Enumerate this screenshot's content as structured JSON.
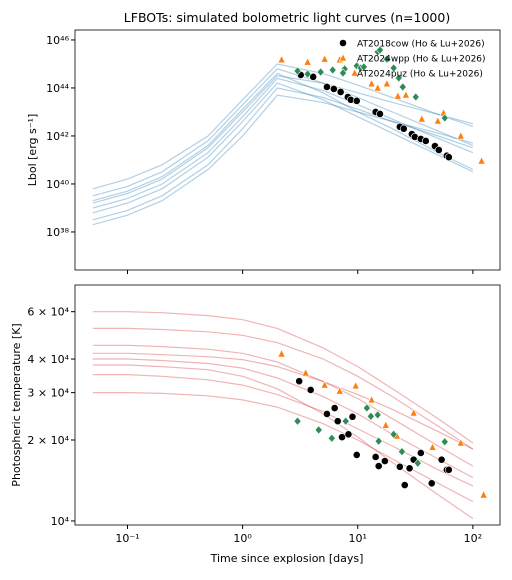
{
  "chart_data": [
    {
      "type": "line",
      "title": "LFBOTs: simulated bolometric light curves (n=1000)",
      "ylabel": "Lbol [erg s⁻¹]",
      "xscale": "log",
      "yscale": "log",
      "xlim": [
        0.035,
        172
      ],
      "ylim": [
        2.6e+36,
        2.6e+46
      ],
      "yticks": [
        {
          "value": 1e+38,
          "label": "10³⁸"
        },
        {
          "value": 1e+40,
          "label": "10⁴⁰"
        },
        {
          "value": 1e+42,
          "label": "10⁴²"
        },
        {
          "value": 1e+44,
          "label": "10⁴⁴"
        },
        {
          "value": 1e+46,
          "label": "10⁴⁶"
        }
      ],
      "legend": "upper right",
      "model_color": "#1f77b4",
      "model_opacity": 0.35,
      "model_x": [
        0.05,
        0.1,
        0.2,
        0.5,
        1,
        2,
        5,
        10,
        20,
        50,
        100
      ],
      "models": [
        {
          "values": [
            1e+39,
            2.5e+39,
            1e+40,
            2e+41,
            6.3e+42,
            2.5e+44,
            7.9e+43,
            2e+43,
            5e+42,
            7.9e+41,
            2e+41
          ]
        },
        {
          "values": [
            3.2e+38,
            7.9e+38,
            3.2e+39,
            6.3e+40,
            2e+42,
            1e+44,
            4e+43,
            1.3e+43,
            4e+42,
            1e+42,
            3.2e+41
          ]
        },
        {
          "values": [
            3.2e+39,
            7.9e+39,
            3.2e+40,
            6.3e+41,
            2e+43,
            6.3e+44,
            1.6e+44,
            4e+43,
            1e+43,
            1.6e+42,
            4e+41
          ]
        },
        {
          "values": [
            6.3e+39,
            1.6e+40,
            6.3e+40,
            1e+42,
            3.2e+43,
            1e+45,
            4e+44,
            1.3e+44,
            4e+43,
            7.9e+42,
            2.5e+42
          ]
        },
        {
          "values": [
            6.3e+38,
            1.6e+39,
            6.3e+39,
            1.3e+41,
            4e+42,
            1.6e+44,
            3.2e+43,
            6.3e+42,
            1.3e+42,
            1.6e+41,
            3.2e+40
          ]
        },
        {
          "values": [
            1.6e+39,
            4e+39,
            1.6e+40,
            3.2e+41,
            1e+43,
            3.2e+44,
            1.6e+44,
            6.3e+43,
            2.5e+43,
            7.9e+42,
            3.2e+42
          ]
        },
        {
          "values": [
            2e+38,
            5e+38,
            2e+39,
            4e+40,
            1e+42,
            5e+43,
            2.5e+43,
            1e+43,
            4e+42,
            1.3e+42,
            5e+41
          ]
        },
        {
          "values": [
            2e+39,
            5e+39,
            2e+40,
            4e+41,
            1.3e+43,
            4e+44,
            6.3e+43,
            1e+43,
            2e+42,
            2e+41,
            4e+40
          ]
        }
      ],
      "observations": [
        {
          "name": "AT2018cow (Ho & Lu+2026)",
          "marker": "circle",
          "color": "#000000",
          "x": [
            3.2,
            4.1,
            5.4,
            6.2,
            7.1,
            8.2,
            8.7,
            9.8,
            14.3,
            15.6,
            23.2,
            25.1,
            29.5,
            31.3,
            35.3,
            39,
            46.8,
            50.6,
            59.4,
            61.8
          ],
          "values": [
            3.5e+44,
            2.9e+44,
            1.1e+44,
            9.1e+43,
            6.8e+43,
            4.2e+43,
            3.2e+43,
            2.9e+43,
            1e+43,
            8.3e+42,
            2.4e+42,
            2e+42,
            1.2e+42,
            9.1e+41,
            7.5e+41,
            6.2e+41,
            3.8e+41,
            2.6e+41,
            1.5e+41,
            1.3e+41
          ]
        },
        {
          "name": "AT2024wpp (Ho & Lu+2026)",
          "marker": "triangle",
          "color": "#ff7f0e",
          "x": [
            2.18,
            3.67,
            5.16,
            6.97,
            9.4,
            13.2,
            14.9,
            17.9,
            22.3,
            26.2,
            36,
            49.6,
            55.7,
            78.5,
            119
          ],
          "values": [
            1.5e+45,
            1.2e+45,
            1.6e+45,
            1.5e+45,
            4.2e+44,
            1.5e+44,
            1e+44,
            1.5e+44,
            4.6e+43,
            5.1e+43,
            5.1e+42,
            4.2e+42,
            9.1e+42,
            1e+42,
            9.1e+40
          ]
        },
        {
          "name": "AT2024puz (Ho & Lu+2026)",
          "marker": "diamond",
          "color": "#2e8b57",
          "x": [
            3.0,
            3.67,
            4.76,
            6.06,
            7.7,
            9.8,
            10.6,
            11.3,
            14.9,
            15.6,
            17.9,
            20.5,
            22.7,
            24.6,
            31.9,
            57
          ],
          "values": [
            5.1e+44,
            3.8e+44,
            4.6e+44,
            5.6e+44,
            6.2e+44,
            8.3e+44,
            6.8e+44,
            7.5e+44,
            3.2e+45,
            3.8e+45,
            1.6e+45,
            6.8e+44,
            2.6e+44,
            1.1e+44,
            4.2e+43,
            5.6e+42
          ]
        }
      ]
    },
    {
      "type": "line",
      "xlabel": "Time since explosion [days]",
      "ylabel": "Photospheric temperature [K]",
      "xscale": "log",
      "yscale": "log",
      "xlim": [
        0.035,
        172
      ],
      "ylim": [
        9660,
        75400
      ],
      "xticks": [
        {
          "value": 0.1,
          "label": "10⁻¹"
        },
        {
          "value": 1,
          "label": "10⁰"
        },
        {
          "value": 10,
          "label": "10¹"
        },
        {
          "value": 100,
          "label": "10²"
        }
      ],
      "yticks": [
        {
          "value": 10000,
          "label": "10⁴"
        },
        {
          "value": 20000,
          "label": "2 × 10⁴"
        },
        {
          "value": 30000,
          "label": "3 × 10⁴"
        },
        {
          "value": 40000,
          "label": "4 × 10⁴"
        },
        {
          "value": 60000,
          "label": "6 × 10⁴"
        }
      ],
      "model_color": "#d62728",
      "model_opacity": 0.35,
      "model_x": [
        0.05,
        0.1,
        0.2,
        0.5,
        1,
        2,
        5,
        10,
        20,
        50,
        100
      ],
      "models": [
        {
          "values": [
            40000,
            40000,
            39500,
            38500,
            37000,
            34000,
            29000,
            25000,
            21000,
            17000,
            14500
          ]
        },
        {
          "values": [
            35000,
            35000,
            34500,
            33500,
            32000,
            29500,
            25500,
            22000,
            19000,
            15500,
            13500
          ]
        },
        {
          "values": [
            45000,
            45000,
            44500,
            43500,
            42000,
            39000,
            33000,
            28500,
            24000,
            19000,
            16000
          ]
        },
        {
          "values": [
            52000,
            52000,
            51500,
            50500,
            49000,
            46000,
            40000,
            34500,
            29000,
            22500,
            18500
          ]
        },
        {
          "values": [
            30000,
            30000,
            29800,
            29200,
            28200,
            26500,
            23000,
            20000,
            17000,
            13800,
            11800
          ]
        },
        {
          "values": [
            42000,
            42000,
            41500,
            40800,
            39800,
            37500,
            33000,
            29500,
            26000,
            21500,
            18500
          ]
        },
        {
          "values": [
            38000,
            38000,
            37500,
            36500,
            34500,
            31000,
            25000,
            20500,
            16500,
            12500,
            10200
          ]
        },
        {
          "values": [
            60000,
            60000,
            59500,
            58000,
            56000,
            52000,
            44000,
            37500,
            31000,
            24000,
            19500
          ]
        }
      ],
      "observations": [
        {
          "marker": "circle",
          "color": "#000000",
          "x": [
            3.1,
            3.9,
            5.4,
            6.3,
            6.7,
            7.3,
            8.3,
            9.0,
            9.8,
            14.3,
            15.2,
            17.2,
            23.2,
            25.6,
            28.2,
            30.6,
            35.3,
            43.9,
            53.5,
            59.4,
            61.8
          ],
          "values": [
            33100,
            30700,
            25000,
            26300,
            23500,
            20500,
            21000,
            24400,
            17600,
            17300,
            16000,
            16700,
            15900,
            13600,
            15700,
            16900,
            17900,
            13800,
            16900,
            15500,
            15500
          ]
        },
        {
          "marker": "triangle",
          "color": "#ff7f0e",
          "x": [
            2.18,
            3.53,
            5.16,
            6.97,
            9.6,
            13.2,
            17.5,
            21.9,
            30.6,
            44.6,
            78.5,
            124
          ],
          "values": [
            41800,
            35500,
            32000,
            30400,
            31800,
            28200,
            22700,
            20700,
            25200,
            18800,
            19500,
            12500
          ]
        },
        {
          "marker": "diamond",
          "color": "#2e8b57",
          "x": [
            3.0,
            4.58,
            5.95,
            7.86,
            12,
            13,
            14.9,
            15.2,
            20.5,
            24.2,
            33.2,
            57
          ],
          "values": [
            23500,
            21800,
            20300,
            23500,
            26300,
            24500,
            24800,
            19800,
            21000,
            18100,
            16400,
            19700
          ]
        }
      ]
    }
  ]
}
